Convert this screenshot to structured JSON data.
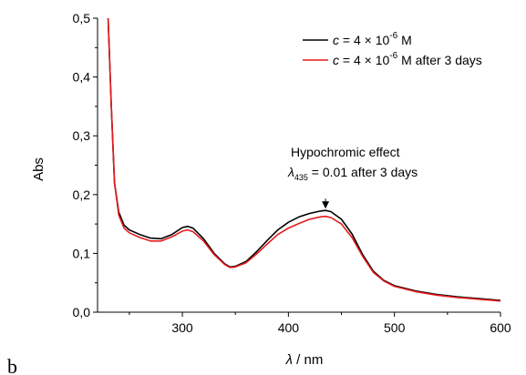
{
  "panel_label": "b",
  "chart_data": {
    "type": "line",
    "title": "",
    "xlabel_symbol": "λ",
    "xlabel_unit": " / nm",
    "ylabel": "Abs",
    "xlim": [
      220,
      600
    ],
    "ylim": [
      0.0,
      0.5
    ],
    "x_ticks": [
      300,
      400,
      500,
      600
    ],
    "x_tick_labels": [
      "300",
      "400",
      "500",
      "600"
    ],
    "y_ticks": [
      0.0,
      0.1,
      0.2,
      0.3,
      0.4,
      0.5
    ],
    "y_tick_labels": [
      "0,0",
      "0,1",
      "0,2",
      "0,3",
      "0,4",
      "0,5"
    ],
    "grid": false,
    "legend_position": "top-right",
    "series": [
      {
        "legend_c": "c",
        "legend_rest": " = 4 × 10",
        "legend_exp": "-6",
        "legend_tail": " M",
        "color": "#000000",
        "points": [
          [
            230,
            0.5
          ],
          [
            233,
            0.35
          ],
          [
            236,
            0.22
          ],
          [
            240,
            0.17
          ],
          [
            245,
            0.148
          ],
          [
            250,
            0.14
          ],
          [
            260,
            0.132
          ],
          [
            270,
            0.126
          ],
          [
            280,
            0.125
          ],
          [
            290,
            0.132
          ],
          [
            300,
            0.144
          ],
          [
            305,
            0.146
          ],
          [
            310,
            0.143
          ],
          [
            320,
            0.125
          ],
          [
            330,
            0.1
          ],
          [
            340,
            0.082
          ],
          [
            345,
            0.077
          ],
          [
            350,
            0.078
          ],
          [
            360,
            0.086
          ],
          [
            370,
            0.103
          ],
          [
            380,
            0.122
          ],
          [
            390,
            0.14
          ],
          [
            400,
            0.153
          ],
          [
            410,
            0.162
          ],
          [
            420,
            0.168
          ],
          [
            430,
            0.172
          ],
          [
            435,
            0.173
          ],
          [
            440,
            0.171
          ],
          [
            450,
            0.158
          ],
          [
            460,
            0.133
          ],
          [
            470,
            0.098
          ],
          [
            480,
            0.07
          ],
          [
            490,
            0.054
          ],
          [
            500,
            0.045
          ],
          [
            520,
            0.036
          ],
          [
            540,
            0.03
          ],
          [
            560,
            0.026
          ],
          [
            580,
            0.023
          ],
          [
            600,
            0.02
          ]
        ]
      },
      {
        "legend_c": "c",
        "legend_rest": " = 4 × 10",
        "legend_exp": "-6",
        "legend_tail": " M after 3 days",
        "color": "#e41a1c",
        "points": [
          [
            230,
            0.5
          ],
          [
            233,
            0.35
          ],
          [
            236,
            0.22
          ],
          [
            240,
            0.165
          ],
          [
            245,
            0.143
          ],
          [
            250,
            0.135
          ],
          [
            260,
            0.127
          ],
          [
            270,
            0.121
          ],
          [
            280,
            0.121
          ],
          [
            290,
            0.128
          ],
          [
            300,
            0.138
          ],
          [
            305,
            0.14
          ],
          [
            310,
            0.137
          ],
          [
            320,
            0.121
          ],
          [
            330,
            0.098
          ],
          [
            340,
            0.081
          ],
          [
            345,
            0.076
          ],
          [
            350,
            0.077
          ],
          [
            360,
            0.084
          ],
          [
            370,
            0.099
          ],
          [
            380,
            0.116
          ],
          [
            390,
            0.132
          ],
          [
            400,
            0.143
          ],
          [
            410,
            0.151
          ],
          [
            420,
            0.158
          ],
          [
            430,
            0.162
          ],
          [
            435,
            0.163
          ],
          [
            440,
            0.161
          ],
          [
            450,
            0.15
          ],
          [
            460,
            0.127
          ],
          [
            470,
            0.095
          ],
          [
            480,
            0.068
          ],
          [
            490,
            0.053
          ],
          [
            500,
            0.044
          ],
          [
            520,
            0.035
          ],
          [
            540,
            0.029
          ],
          [
            560,
            0.025
          ],
          [
            580,
            0.022
          ],
          [
            600,
            0.019
          ]
        ]
      }
    ],
    "annotation": {
      "line1": "Hypochromic effect",
      "symbol": "λ",
      "subscript": "435",
      "line2_rest": " = 0.01 after 3 days",
      "arrow_x": 435,
      "arrow_y_from": 0.193,
      "arrow_y_to": 0.176
    }
  }
}
